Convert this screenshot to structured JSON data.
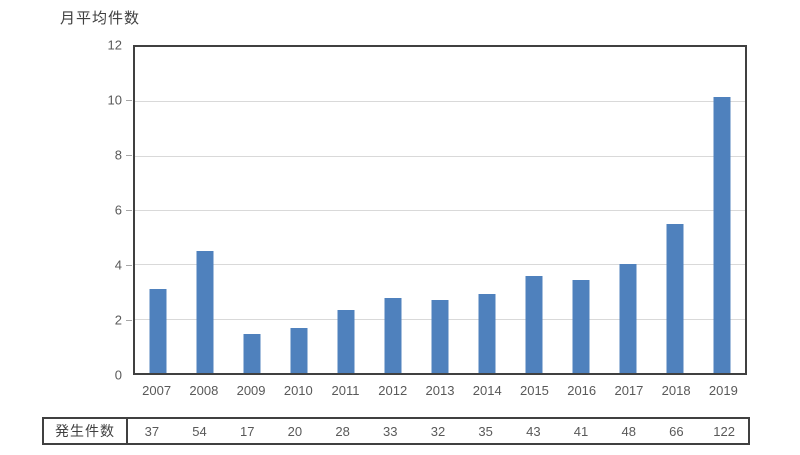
{
  "chart_data": {
    "type": "bar",
    "title": "月平均件数",
    "categories": [
      "2007",
      "2008",
      "2009",
      "2010",
      "2011",
      "2012",
      "2013",
      "2014",
      "2015",
      "2016",
      "2017",
      "2018",
      "2019"
    ],
    "series": [
      {
        "name": "月平均件数",
        "values": [
          3.08,
          4.5,
          1.42,
          1.67,
          2.33,
          2.75,
          2.67,
          2.92,
          3.58,
          3.42,
          4.0,
          5.5,
          10.17
        ]
      }
    ],
    "ylim": [
      0,
      12
    ],
    "yticks": [
      0,
      2,
      4,
      6,
      8,
      10,
      12
    ],
    "grid": true,
    "legend": "none",
    "bar_color": "#4f81bd",
    "gridline_color": "#d9d9d9",
    "axis_border_color": "#404040",
    "table_row": {
      "label": "発生件数",
      "values": [
        37,
        54,
        17,
        20,
        28,
        33,
        32,
        35,
        43,
        41,
        48,
        66,
        122
      ]
    }
  }
}
